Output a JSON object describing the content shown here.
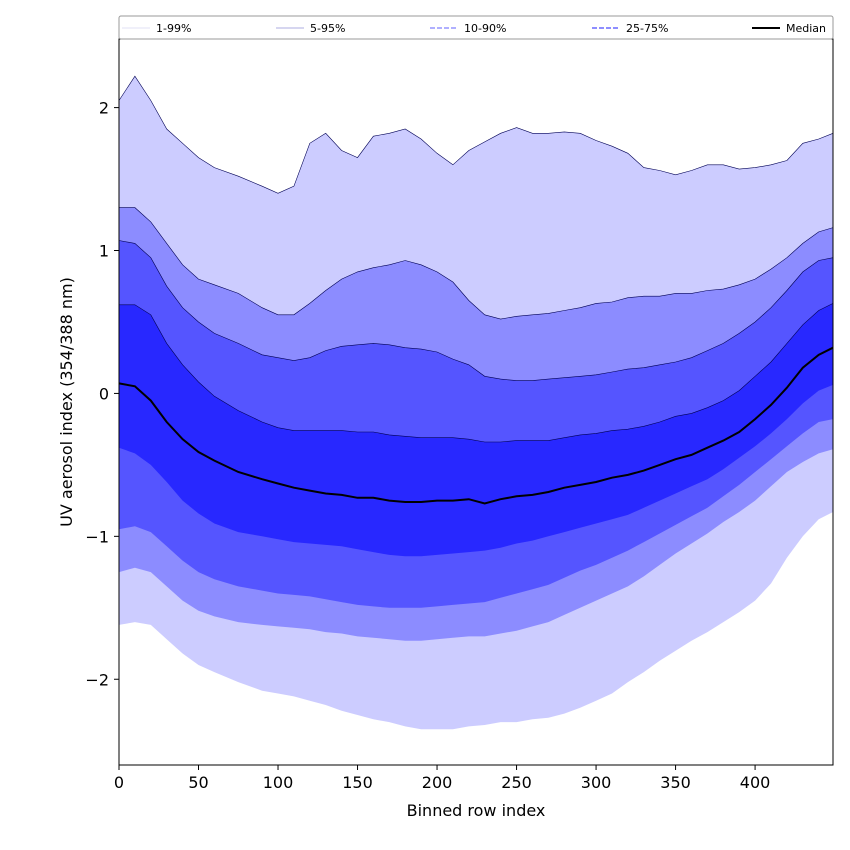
{
  "chart_data": {
    "type": "area",
    "title": "",
    "xlabel": "Binned row index",
    "ylabel": "UV aerosol index (354/388 nm)",
    "xlim": [
      0,
      449
    ],
    "ylim": [
      -2.6,
      2.48
    ],
    "xticks": [
      0,
      50,
      100,
      150,
      200,
      250,
      300,
      350,
      400
    ],
    "yticks": [
      -2,
      -1,
      0,
      1,
      2
    ],
    "ytick_labels": [
      "−2",
      "−1",
      "0",
      "1",
      "2"
    ],
    "legend_location": "top",
    "colors": {
      "band_1_99": "#ccccff",
      "band_5_95": "#8c8cff",
      "band_10_90": "#5555ff",
      "band_25_75": "#2828ff",
      "median": "#000000"
    },
    "legend": [
      {
        "label": "1-99%",
        "style": "thin",
        "color": "#d8d8f0"
      },
      {
        "label": "5-95%",
        "style": "thin",
        "color": "#9090d8"
      },
      {
        "label": "10-90%",
        "style": "dashed",
        "color": "#8080ff"
      },
      {
        "label": "25-75%",
        "style": "dashed",
        "color": "#4a4aff"
      },
      {
        "label": "Median",
        "style": "solid",
        "color": "#000000"
      }
    ],
    "x": [
      0,
      10,
      20,
      30,
      40,
      50,
      60,
      75,
      90,
      100,
      110,
      120,
      130,
      140,
      150,
      160,
      170,
      180,
      190,
      200,
      210,
      220,
      230,
      240,
      250,
      260,
      270,
      280,
      290,
      300,
      310,
      320,
      330,
      340,
      350,
      360,
      370,
      380,
      390,
      400,
      410,
      420,
      430,
      440,
      449
    ],
    "series": [
      {
        "name": "1%",
        "values": [
          -1.62,
          -1.6,
          -1.62,
          -1.72,
          -1.82,
          -1.9,
          -1.95,
          -2.02,
          -2.08,
          -2.1,
          -2.12,
          -2.15,
          -2.18,
          -2.22,
          -2.25,
          -2.28,
          -2.3,
          -2.33,
          -2.35,
          -2.35,
          -2.35,
          -2.33,
          -2.32,
          -2.3,
          -2.3,
          -2.28,
          -2.27,
          -2.24,
          -2.2,
          -2.15,
          -2.1,
          -2.02,
          -1.95,
          -1.87,
          -1.8,
          -1.73,
          -1.67,
          -1.6,
          -1.53,
          -1.45,
          -1.33,
          -1.15,
          -1.0,
          -0.88,
          -0.83
        ]
      },
      {
        "name": "5%",
        "values": [
          -1.25,
          -1.22,
          -1.25,
          -1.35,
          -1.45,
          -1.52,
          -1.56,
          -1.6,
          -1.62,
          -1.63,
          -1.64,
          -1.65,
          -1.67,
          -1.68,
          -1.7,
          -1.71,
          -1.72,
          -1.73,
          -1.73,
          -1.72,
          -1.71,
          -1.7,
          -1.7,
          -1.68,
          -1.66,
          -1.63,
          -1.6,
          -1.55,
          -1.5,
          -1.45,
          -1.4,
          -1.35,
          -1.28,
          -1.2,
          -1.12,
          -1.05,
          -0.98,
          -0.9,
          -0.83,
          -0.75,
          -0.65,
          -0.55,
          -0.48,
          -0.42,
          -0.39
        ]
      },
      {
        "name": "10%",
        "values": [
          -0.95,
          -0.93,
          -0.97,
          -1.07,
          -1.17,
          -1.25,
          -1.3,
          -1.35,
          -1.38,
          -1.4,
          -1.41,
          -1.42,
          -1.44,
          -1.46,
          -1.48,
          -1.49,
          -1.5,
          -1.5,
          -1.5,
          -1.49,
          -1.48,
          -1.47,
          -1.46,
          -1.43,
          -1.4,
          -1.37,
          -1.34,
          -1.29,
          -1.24,
          -1.2,
          -1.15,
          -1.1,
          -1.04,
          -0.98,
          -0.92,
          -0.86,
          -0.8,
          -0.72,
          -0.64,
          -0.55,
          -0.46,
          -0.37,
          -0.28,
          -0.2,
          -0.18
        ]
      },
      {
        "name": "25%",
        "values": [
          -0.38,
          -0.42,
          -0.5,
          -0.62,
          -0.75,
          -0.84,
          -0.91,
          -0.97,
          -1.0,
          -1.02,
          -1.04,
          -1.05,
          -1.06,
          -1.07,
          -1.09,
          -1.11,
          -1.13,
          -1.14,
          -1.14,
          -1.13,
          -1.12,
          -1.11,
          -1.1,
          -1.08,
          -1.05,
          -1.03,
          -1.0,
          -0.97,
          -0.94,
          -0.91,
          -0.88,
          -0.85,
          -0.8,
          -0.75,
          -0.7,
          -0.65,
          -0.6,
          -0.53,
          -0.45,
          -0.37,
          -0.28,
          -0.18,
          -0.07,
          0.02,
          0.06
        ]
      },
      {
        "name": "Median",
        "values": [
          0.07,
          0.05,
          -0.05,
          -0.2,
          -0.32,
          -0.41,
          -0.47,
          -0.55,
          -0.6,
          -0.63,
          -0.66,
          -0.68,
          -0.7,
          -0.71,
          -0.73,
          -0.73,
          -0.75,
          -0.76,
          -0.76,
          -0.75,
          -0.75,
          -0.74,
          -0.77,
          -0.74,
          -0.72,
          -0.71,
          -0.69,
          -0.66,
          -0.64,
          -0.62,
          -0.59,
          -0.57,
          -0.54,
          -0.5,
          -0.46,
          -0.43,
          -0.38,
          -0.33,
          -0.27,
          -0.18,
          -0.08,
          0.04,
          0.18,
          0.27,
          0.32
        ]
      },
      {
        "name": "75%",
        "values": [
          0.62,
          0.62,
          0.55,
          0.35,
          0.2,
          0.08,
          -0.02,
          -0.12,
          -0.2,
          -0.24,
          -0.26,
          -0.26,
          -0.26,
          -0.26,
          -0.27,
          -0.27,
          -0.29,
          -0.3,
          -0.31,
          -0.31,
          -0.31,
          -0.32,
          -0.34,
          -0.34,
          -0.33,
          -0.33,
          -0.33,
          -0.31,
          -0.29,
          -0.28,
          -0.26,
          -0.25,
          -0.23,
          -0.2,
          -0.16,
          -0.14,
          -0.1,
          -0.05,
          0.02,
          0.12,
          0.22,
          0.35,
          0.48,
          0.58,
          0.63
        ]
      },
      {
        "name": "90%",
        "values": [
          1.07,
          1.05,
          0.95,
          0.75,
          0.6,
          0.5,
          0.42,
          0.35,
          0.27,
          0.25,
          0.23,
          0.25,
          0.3,
          0.33,
          0.34,
          0.35,
          0.34,
          0.32,
          0.31,
          0.29,
          0.24,
          0.2,
          0.12,
          0.1,
          0.09,
          0.09,
          0.1,
          0.11,
          0.12,
          0.13,
          0.15,
          0.17,
          0.18,
          0.2,
          0.22,
          0.25,
          0.3,
          0.35,
          0.42,
          0.5,
          0.6,
          0.72,
          0.85,
          0.93,
          0.95
        ]
      },
      {
        "name": "95%",
        "values": [
          1.3,
          1.3,
          1.2,
          1.05,
          0.9,
          0.8,
          0.76,
          0.7,
          0.6,
          0.55,
          0.55,
          0.63,
          0.72,
          0.8,
          0.85,
          0.88,
          0.9,
          0.93,
          0.9,
          0.85,
          0.78,
          0.65,
          0.55,
          0.52,
          0.54,
          0.55,
          0.56,
          0.58,
          0.6,
          0.63,
          0.64,
          0.67,
          0.68,
          0.68,
          0.7,
          0.7,
          0.72,
          0.73,
          0.76,
          0.8,
          0.87,
          0.95,
          1.05,
          1.13,
          1.16
        ]
      },
      {
        "name": "99%",
        "values": [
          2.05,
          2.22,
          2.05,
          1.85,
          1.75,
          1.65,
          1.58,
          1.52,
          1.45,
          1.4,
          1.45,
          1.75,
          1.82,
          1.7,
          1.65,
          1.8,
          1.82,
          1.85,
          1.78,
          1.68,
          1.6,
          1.7,
          1.76,
          1.82,
          1.86,
          1.82,
          1.82,
          1.83,
          1.82,
          1.77,
          1.73,
          1.68,
          1.58,
          1.56,
          1.53,
          1.56,
          1.6,
          1.6,
          1.57,
          1.58,
          1.6,
          1.63,
          1.75,
          1.78,
          1.82
        ]
      }
    ]
  }
}
